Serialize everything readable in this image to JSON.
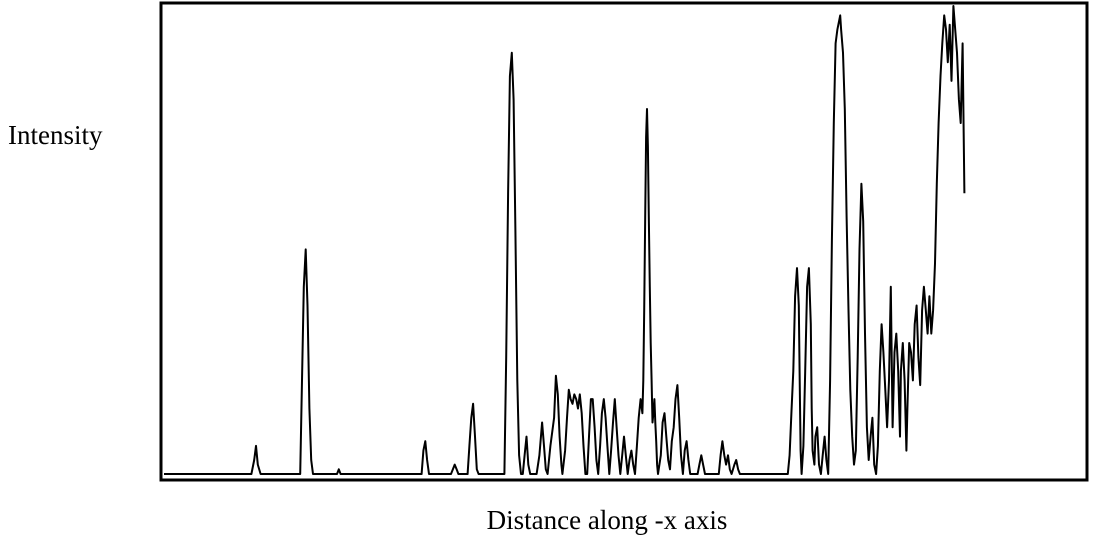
{
  "chart_data": {
    "type": "line",
    "title": "",
    "xlabel": "Distance along -x axis",
    "ylabel": "Intensity",
    "xlim": [
      0,
      1000
    ],
    "ylim": [
      0,
      100
    ],
    "grid": false,
    "axis_ticks": false,
    "line_color": "#000000",
    "series": [
      {
        "points": [
          [
            0,
            0
          ],
          [
            95,
            0
          ],
          [
            98,
            3
          ],
          [
            100,
            6
          ],
          [
            102,
            2
          ],
          [
            105,
            0
          ],
          [
            148,
            0
          ],
          [
            150,
            20
          ],
          [
            152,
            40
          ],
          [
            154,
            48
          ],
          [
            156,
            36
          ],
          [
            158,
            14
          ],
          [
            160,
            3
          ],
          [
            162,
            0
          ],
          [
            188,
            0
          ],
          [
            190,
            1
          ],
          [
            192,
            0
          ],
          [
            280,
            0
          ],
          [
            282,
            5
          ],
          [
            284,
            7
          ],
          [
            286,
            3
          ],
          [
            288,
            0
          ],
          [
            312,
            0
          ],
          [
            314,
            1
          ],
          [
            316,
            2
          ],
          [
            318,
            1
          ],
          [
            320,
            0
          ],
          [
            330,
            0
          ],
          [
            332,
            6
          ],
          [
            334,
            12
          ],
          [
            336,
            15
          ],
          [
            338,
            8
          ],
          [
            340,
            1
          ],
          [
            342,
            0
          ],
          [
            370,
            0
          ],
          [
            372,
            25
          ],
          [
            374,
            60
          ],
          [
            376,
            85
          ],
          [
            378,
            90
          ],
          [
            380,
            80
          ],
          [
            382,
            52
          ],
          [
            384,
            20
          ],
          [
            386,
            4
          ],
          [
            388,
            0
          ],
          [
            390,
            0
          ],
          [
            392,
            4
          ],
          [
            394,
            8
          ],
          [
            396,
            2
          ],
          [
            398,
            0
          ],
          [
            405,
            0
          ],
          [
            408,
            4
          ],
          [
            411,
            11
          ],
          [
            413,
            6
          ],
          [
            415,
            1
          ],
          [
            417,
            0
          ],
          [
            420,
            6
          ],
          [
            424,
            12
          ],
          [
            426,
            21
          ],
          [
            428,
            17
          ],
          [
            430,
            8
          ],
          [
            432,
            2
          ],
          [
            433,
            0
          ],
          [
            436,
            5
          ],
          [
            438,
            12
          ],
          [
            440,
            18
          ],
          [
            442,
            16
          ],
          [
            444,
            15
          ],
          [
            446,
            17
          ],
          [
            448,
            16
          ],
          [
            450,
            14
          ],
          [
            452,
            17
          ],
          [
            454,
            13
          ],
          [
            456,
            6
          ],
          [
            458,
            0
          ],
          [
            460,
            0
          ],
          [
            462,
            8
          ],
          [
            464,
            16
          ],
          [
            466,
            16
          ],
          [
            468,
            10
          ],
          [
            470,
            3
          ],
          [
            472,
            0
          ],
          [
            474,
            6
          ],
          [
            476,
            13
          ],
          [
            478,
            16
          ],
          [
            480,
            12
          ],
          [
            482,
            6
          ],
          [
            484,
            0
          ],
          [
            486,
            5
          ],
          [
            488,
            11
          ],
          [
            490,
            16
          ],
          [
            492,
            10
          ],
          [
            494,
            4
          ],
          [
            496,
            0
          ],
          [
            498,
            4
          ],
          [
            500,
            8
          ],
          [
            502,
            4
          ],
          [
            504,
            0
          ],
          [
            506,
            3
          ],
          [
            508,
            5
          ],
          [
            510,
            2
          ],
          [
            512,
            0
          ],
          [
            514,
            6
          ],
          [
            516,
            12
          ],
          [
            518,
            16
          ],
          [
            520,
            13
          ],
          [
            521,
            20
          ],
          [
            522,
            35
          ],
          [
            523,
            55
          ],
          [
            524,
            72
          ],
          [
            525,
            78
          ],
          [
            526,
            70
          ],
          [
            527,
            55
          ],
          [
            528,
            40
          ],
          [
            529,
            28
          ],
          [
            530,
            20
          ],
          [
            531,
            11
          ],
          [
            532,
            13
          ],
          [
            533,
            16
          ],
          [
            534,
            11
          ],
          [
            535,
            7
          ],
          [
            536,
            2
          ],
          [
            537,
            0
          ],
          [
            540,
            4
          ],
          [
            542,
            11
          ],
          [
            544,
            13
          ],
          [
            546,
            8
          ],
          [
            548,
            3
          ],
          [
            550,
            1
          ],
          [
            552,
            7
          ],
          [
            554,
            10
          ],
          [
            556,
            16
          ],
          [
            558,
            19
          ],
          [
            560,
            12
          ],
          [
            562,
            4
          ],
          [
            564,
            0
          ],
          [
            566,
            5
          ],
          [
            568,
            7
          ],
          [
            570,
            3
          ],
          [
            572,
            0
          ],
          [
            580,
            0
          ],
          [
            582,
            2
          ],
          [
            584,
            4
          ],
          [
            586,
            2
          ],
          [
            588,
            0
          ],
          [
            603,
            0
          ],
          [
            605,
            4
          ],
          [
            607,
            7
          ],
          [
            609,
            4
          ],
          [
            611,
            2
          ],
          [
            613,
            4
          ],
          [
            615,
            1
          ],
          [
            617,
            0
          ],
          [
            620,
            2
          ],
          [
            622,
            3
          ],
          [
            624,
            1
          ],
          [
            626,
            0
          ],
          [
            678,
            0
          ],
          [
            680,
            4
          ],
          [
            682,
            13
          ],
          [
            684,
            22
          ],
          [
            686,
            38
          ],
          [
            688,
            44
          ],
          [
            690,
            36
          ],
          [
            691,
            20
          ],
          [
            692,
            5
          ],
          [
            693,
            0
          ],
          [
            695,
            6
          ],
          [
            697,
            22
          ],
          [
            699,
            40
          ],
          [
            701,
            44
          ],
          [
            703,
            32
          ],
          [
            704,
            14
          ],
          [
            705,
            5
          ],
          [
            707,
            2
          ],
          [
            708,
            8
          ],
          [
            710,
            10
          ],
          [
            712,
            2
          ],
          [
            714,
            0
          ],
          [
            716,
            4
          ],
          [
            718,
            8
          ],
          [
            720,
            3
          ],
          [
            722,
            0
          ],
          [
            724,
            20
          ],
          [
            726,
            50
          ],
          [
            728,
            75
          ],
          [
            730,
            92
          ],
          [
            732,
            95
          ],
          [
            734,
            97
          ],
          [
            735,
            98
          ],
          [
            736,
            95
          ],
          [
            738,
            90
          ],
          [
            740,
            78
          ],
          [
            742,
            55
          ],
          [
            744,
            35
          ],
          [
            746,
            18
          ],
          [
            748,
            8
          ],
          [
            750,
            2
          ],
          [
            752,
            5
          ],
          [
            754,
            25
          ],
          [
            756,
            48
          ],
          [
            758,
            62
          ],
          [
            760,
            54
          ],
          [
            762,
            30
          ],
          [
            764,
            10
          ],
          [
            766,
            3
          ],
          [
            768,
            8
          ],
          [
            770,
            12
          ],
          [
            772,
            2
          ],
          [
            774,
            0
          ],
          [
            776,
            6
          ],
          [
            778,
            22
          ],
          [
            780,
            32
          ],
          [
            782,
            26
          ],
          [
            784,
            18
          ],
          [
            786,
            10
          ],
          [
            788,
            20
          ],
          [
            790,
            40
          ],
          [
            792,
            10
          ],
          [
            794,
            26
          ],
          [
            796,
            30
          ],
          [
            798,
            22
          ],
          [
            800,
            8
          ],
          [
            801,
            22
          ],
          [
            803,
            28
          ],
          [
            805,
            20
          ],
          [
            807,
            5
          ],
          [
            808,
            14
          ],
          [
            810,
            28
          ],
          [
            812,
            26
          ],
          [
            814,
            20
          ],
          [
            816,
            32
          ],
          [
            818,
            36
          ],
          [
            820,
            25
          ],
          [
            822,
            19
          ],
          [
            824,
            35
          ],
          [
            826,
            40
          ],
          [
            828,
            35
          ],
          [
            830,
            30
          ],
          [
            832,
            38
          ],
          [
            834,
            30
          ],
          [
            836,
            35
          ],
          [
            838,
            45
          ],
          [
            840,
            62
          ],
          [
            842,
            75
          ],
          [
            844,
            85
          ],
          [
            846,
            92
          ],
          [
            848,
            98
          ],
          [
            850,
            95
          ],
          [
            852,
            88
          ],
          [
            854,
            96
          ],
          [
            856,
            84
          ],
          [
            858,
            100
          ],
          [
            860,
            95
          ],
          [
            862,
            90
          ],
          [
            864,
            80
          ],
          [
            866,
            75
          ],
          [
            868,
            92
          ],
          [
            870,
            60
          ]
        ]
      }
    ]
  }
}
